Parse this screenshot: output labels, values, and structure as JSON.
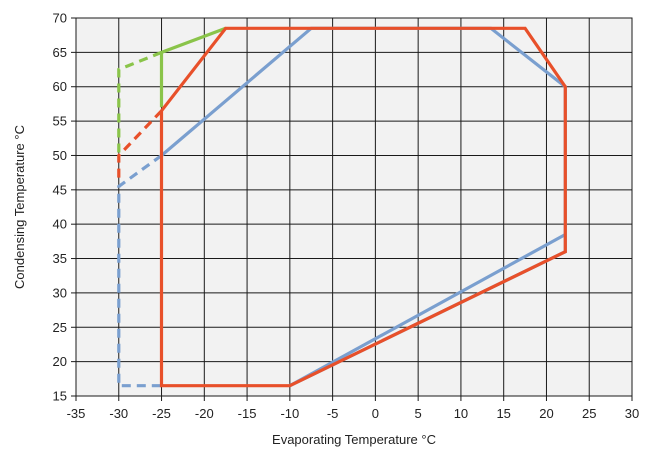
{
  "chart_data": {
    "type": "line",
    "title": "",
    "xlabel": "Evaporating Temperature °C",
    "ylabel": "Condensing Temperature °C",
    "xlim": [
      -35,
      30
    ],
    "ylim": [
      15,
      70
    ],
    "x_ticks": [
      -35,
      -30,
      -25,
      -20,
      -15,
      -10,
      -5,
      0,
      5,
      10,
      15,
      20,
      25,
      30
    ],
    "y_ticks": [
      15,
      20,
      25,
      30,
      35,
      40,
      45,
      50,
      55,
      60,
      65,
      70
    ],
    "grid": true,
    "plot_background": "#f2f2f2",
    "grid_color": "#1a1a1a",
    "series": [
      {
        "color": "#7a9fcf",
        "solid": [
          [
            [
              -25,
              50
            ],
            [
              -7.5,
              68.5
            ],
            [
              13.5,
              68.5
            ],
            [
              22.2,
              60
            ],
            [
              22.2,
              36
            ],
            [
              -10,
              16.5
            ]
          ],
          [
            [
              -10,
              16.5
            ],
            [
              22.2,
              38.5
            ]
          ]
        ],
        "dashed": [
          [
            [
              -25,
              50
            ],
            [
              -30,
              45.5
            ],
            [
              -30,
              16.5
            ],
            [
              -25,
              16.5
            ]
          ]
        ]
      },
      {
        "color": "#8ac44a",
        "solid": [
          [
            [
              -25,
              57
            ],
            [
              -25,
              65
            ],
            [
              -17.5,
              68.5
            ]
          ]
        ],
        "dashed": [
          [
            [
              -25,
              65
            ],
            [
              -30,
              62.5
            ],
            [
              -30,
              50
            ]
          ]
        ]
      },
      {
        "color": "#e8502a",
        "solid": [
          [
            [
              -25,
              56.5
            ],
            [
              -17.5,
              68.5
            ],
            [
              17.5,
              68.5
            ],
            [
              22.2,
              60
            ],
            [
              22.2,
              36
            ],
            [
              -10,
              16.5
            ],
            [
              -25,
              16.5
            ],
            [
              -25,
              56.5
            ]
          ]
        ],
        "dashed": [
          [
            [
              -25,
              56.5
            ],
            [
              -30,
              50
            ],
            [
              -30,
              46
            ]
          ]
        ]
      }
    ]
  }
}
